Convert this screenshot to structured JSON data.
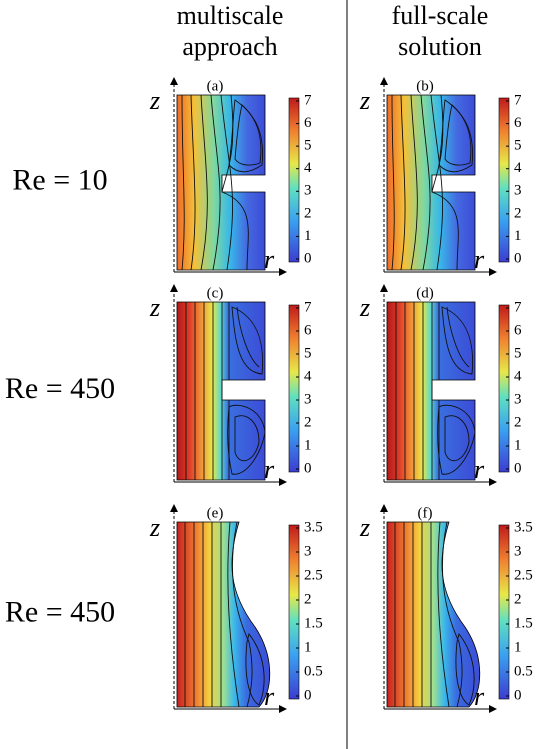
{
  "columns": [
    {
      "title_lines": [
        "multiscale",
        "approach"
      ]
    },
    {
      "title_lines": [
        "full-scale",
        "solution"
      ]
    }
  ],
  "rows": [
    {
      "label": "Re = 10",
      "panels": [
        "(a)",
        "(b)"
      ],
      "colorbar_ticks": [
        0,
        1,
        2,
        3,
        4,
        5,
        6,
        7
      ]
    },
    {
      "label": "Re = 450",
      "panels": [
        "(c)",
        "(d)"
      ],
      "colorbar_ticks": [
        0,
        1,
        2,
        3,
        4,
        5,
        6,
        7
      ]
    },
    {
      "label": "Re = 450",
      "panels": [
        "(e)",
        "(f)"
      ],
      "colorbar_ticks": [
        0,
        0.5,
        1,
        1.5,
        2,
        2.5,
        3,
        3.5
      ]
    }
  ],
  "axes": {
    "vertical": "z",
    "horizontal": "r"
  }
}
